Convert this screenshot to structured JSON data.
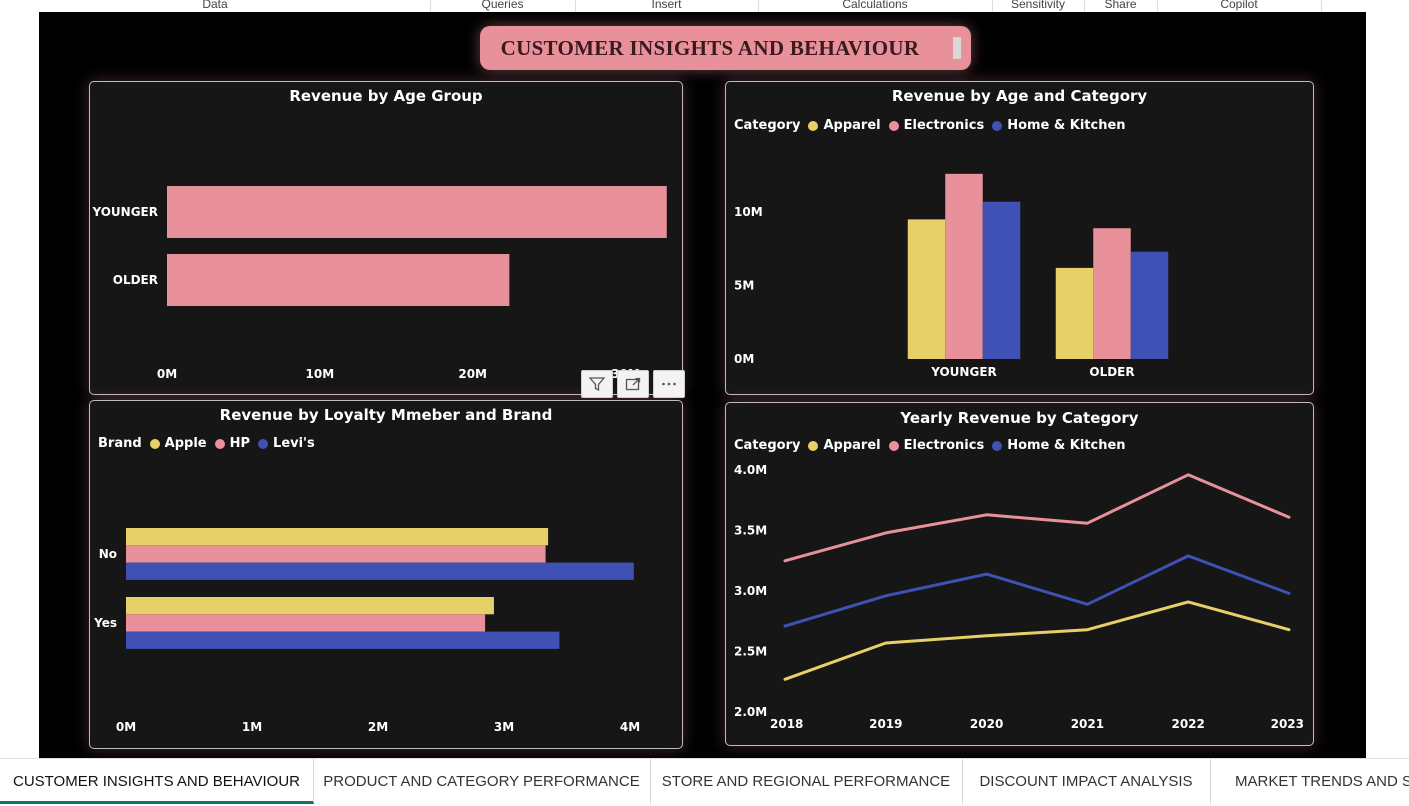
{
  "ribbon": {
    "items": [
      "Data",
      "Queries",
      "Insert",
      "Calculations",
      "Sensitivity",
      "Share",
      "Copilot"
    ]
  },
  "report_title": "CUSTOMER INSIGHTS AND BEHAVIOUR",
  "colors": {
    "apparel": "#e8d068",
    "electronics": "#e8919a",
    "home_kitchen": "#3f51b5",
    "bar_pink": "#e8919a",
    "canvas": "#000000",
    "panel": "#161616",
    "tab_accent": "#117865"
  },
  "visual_actions": {
    "filter_icon": "filter-icon",
    "focus_icon": "focus-mode-icon",
    "more_icon": "more-options-icon"
  },
  "tabs": [
    {
      "label": "CUSTOMER INSIGHTS AND BEHAVIOUR",
      "active": true
    },
    {
      "label": "PRODUCT AND CATEGORY PERFORMANCE",
      "active": false
    },
    {
      "label": "STORE AND REGIONAL PERFORMANCE",
      "active": false
    },
    {
      "label": "DISCOUNT IMPACT ANALYSIS",
      "active": false
    },
    {
      "label": "MARKET TRENDS AND SEASONALITY",
      "active": false
    }
  ],
  "chart_data": [
    {
      "id": "age",
      "type": "bar",
      "orientation": "horizontal",
      "title": "Revenue by Age Group",
      "categories": [
        "YOUNGER",
        "OLDER"
      ],
      "values": [
        32.7,
        22.4
      ],
      "xticks": [
        "0M",
        "10M",
        "20M",
        "30M"
      ],
      "tick_values": [
        0,
        10,
        20,
        30
      ],
      "xlim": [
        0,
        33.5
      ],
      "unit": "M",
      "grid": false
    },
    {
      "id": "agecat",
      "type": "bar",
      "orientation": "vertical",
      "title": "Revenue by Age and Category",
      "legend_title": "Category",
      "legend_position": "top-left",
      "categories": [
        "YOUNGER",
        "OLDER"
      ],
      "series": [
        {
          "name": "Apparel",
          "values": [
            9.5,
            6.2
          ]
        },
        {
          "name": "Electronics",
          "values": [
            12.6,
            8.9
          ]
        },
        {
          "name": "Home & Kitchen",
          "values": [
            10.7,
            7.3
          ]
        }
      ],
      "yticks": [
        "0M",
        "5M",
        "10M"
      ],
      "tick_values": [
        0,
        5,
        10
      ],
      "ylim": [
        0,
        13.2
      ],
      "unit": "M",
      "grid": false
    },
    {
      "id": "loyalty",
      "type": "bar",
      "orientation": "horizontal",
      "title": "Revenue by Loyalty Mmeber and Brand",
      "legend_title": "Brand",
      "legend_position": "top-left",
      "categories": [
        "No",
        "Yes"
      ],
      "series": [
        {
          "name": "Apple",
          "values": [
            3.35,
            2.92
          ]
        },
        {
          "name": "HP",
          "values": [
            3.33,
            2.85
          ]
        },
        {
          "name": "Levi's",
          "values": [
            4.03,
            3.44
          ]
        }
      ],
      "xticks": [
        "0M",
        "1M",
        "2M",
        "3M",
        "4M"
      ],
      "tick_values": [
        0,
        1,
        2,
        3,
        4
      ],
      "xlim": [
        0,
        4
      ],
      "unit": "M",
      "grid": false
    },
    {
      "id": "yearly",
      "type": "line",
      "title": "Yearly Revenue by Category",
      "legend_title": "Category",
      "legend_position": "top-left",
      "x": [
        "2018",
        "2019",
        "2020",
        "2021",
        "2022",
        "2023"
      ],
      "series": [
        {
          "name": "Apparel",
          "values": [
            2.27,
            2.57,
            2.63,
            2.68,
            2.91,
            2.68
          ]
        },
        {
          "name": "Electronics",
          "values": [
            3.25,
            3.48,
            3.63,
            3.56,
            3.96,
            3.61
          ]
        },
        {
          "name": "Home & Kitchen",
          "values": [
            2.71,
            2.96,
            3.14,
            2.89,
            3.29,
            2.98
          ]
        }
      ],
      "yticks": [
        "2.0M",
        "2.5M",
        "3.0M",
        "3.5M",
        "4.0M"
      ],
      "tick_values": [
        2.0,
        2.5,
        3.0,
        3.5,
        4.0
      ],
      "ylim": [
        2.0,
        4.0
      ],
      "unit": "M",
      "grid": false
    }
  ]
}
